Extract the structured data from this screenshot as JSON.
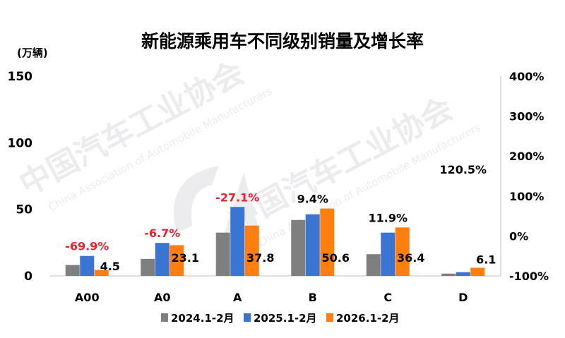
{
  "chart_data": {
    "type": "bar",
    "title": "新能源乘用车不同级别销量及增长率",
    "ylabel": "(万辆)",
    "ylim": [
      0,
      150
    ],
    "y_ticks": [
      "0",
      "50",
      "100",
      "150"
    ],
    "y2lim": [
      -100,
      400
    ],
    "y2_ticks": [
      "-100%",
      "0%",
      "100%",
      "200%",
      "300%",
      "400%"
    ],
    "grid": false,
    "legend_position": "bottom",
    "categories": [
      "A00",
      "A0",
      "A",
      "B",
      "C",
      "D"
    ],
    "series": [
      {
        "name": "2024.1-2月",
        "color": "#7f7f7f",
        "values": [
          8.2,
          12.8,
          32.5,
          42,
          16.3,
          1.7
        ]
      },
      {
        "name": "2025.1-2月",
        "color": "#3a75d4",
        "values": [
          15,
          24.8,
          51.8,
          46.3,
          32.5,
          2.8
        ]
      },
      {
        "name": "2026.1-2月",
        "color": "#ff7f0e",
        "values": [
          4.5,
          23.1,
          37.8,
          50.6,
          36.4,
          6.1
        ]
      }
    ],
    "value_labels": [
      "4.5",
      "23.1",
      "37.8",
      "50.6",
      "36.4",
      "6.1"
    ],
    "growth_rates": [
      {
        "label": "-69.9%",
        "color": "#e8232d"
      },
      {
        "label": "-6.7%",
        "color": "#e8232d"
      },
      {
        "label": "-27.1%",
        "color": "#e8232d"
      },
      {
        "label": "9.4%",
        "color": "#000000"
      },
      {
        "label": "11.9%",
        "color": "#000000"
      },
      {
        "label": "120.5%",
        "color": "#000000"
      }
    ]
  },
  "watermark": {
    "name_cn": "中国汽车工业协会",
    "name_en": "China Association of Automobile Manufacturers"
  }
}
